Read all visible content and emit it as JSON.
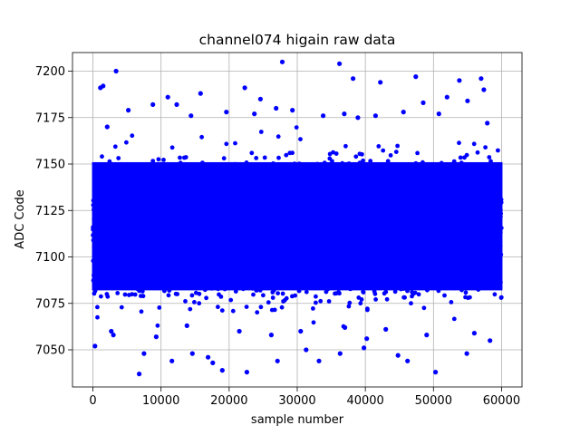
{
  "chart_data": {
    "type": "scatter",
    "title": "channel074 higain raw data",
    "xlabel": "sample number",
    "ylabel": "ADC Code",
    "xlim": [
      -3000,
      63000
    ],
    "ylim": [
      7030,
      7210
    ],
    "xticks": [
      0,
      10000,
      20000,
      30000,
      40000,
      50000,
      60000
    ],
    "xtick_labels": [
      "0",
      "10000",
      "20000",
      "30000",
      "40000",
      "50000",
      "60000"
    ],
    "yticks": [
      7050,
      7075,
      7100,
      7125,
      7150,
      7175,
      7200
    ],
    "ytick_labels": [
      "7050",
      "7075",
      "7100",
      "7125",
      "7150",
      "7175",
      "7200"
    ],
    "grid": true,
    "marker_color": "#0000ff",
    "series": [
      {
        "count": 60000,
        "x_range": [
          0,
          59999
        ],
        "dense_band": [
          7078,
          7155
        ],
        "approx_mean": 7117,
        "points": [
          [
            3400,
            7200
          ],
          [
            1100,
            7191
          ],
          [
            1500,
            7192
          ],
          [
            27800,
            7205
          ],
          [
            36200,
            7204
          ],
          [
            38200,
            7196
          ],
          [
            47400,
            7197
          ],
          [
            57000,
            7196
          ],
          [
            53800,
            7195
          ],
          [
            42200,
            7194
          ],
          [
            22300,
            7191
          ],
          [
            57400,
            7190
          ],
          [
            11000,
            7186
          ],
          [
            8800,
            7182
          ],
          [
            15800,
            7188
          ],
          [
            24600,
            7185
          ],
          [
            52000,
            7186
          ],
          [
            55000,
            7184
          ],
          [
            12300,
            7182
          ],
          [
            48500,
            7183
          ],
          [
            6800,
            7037
          ],
          [
            50300,
            7038
          ],
          [
            22600,
            7038
          ],
          [
            19000,
            7039
          ],
          [
            27100,
            7044
          ],
          [
            33200,
            7044
          ],
          [
            46200,
            7044
          ],
          [
            11600,
            7044
          ],
          [
            17600,
            7043
          ],
          [
            16900,
            7046
          ],
          [
            36300,
            7048
          ],
          [
            54900,
            7048
          ],
          [
            44800,
            7047
          ],
          [
            7500,
            7048
          ],
          [
            14600,
            7048
          ],
          [
            300,
            7052
          ],
          [
            39800,
            7051
          ],
          [
            31300,
            7050
          ],
          [
            58300,
            7055
          ],
          [
            2700,
            7060
          ],
          [
            49000,
            7058
          ],
          [
            26200,
            7058
          ],
          [
            40200,
            7056
          ],
          [
            9300,
            7057
          ],
          [
            43000,
            7061
          ],
          [
            56000,
            7059
          ],
          [
            30500,
            7060
          ],
          [
            13800,
            7063
          ],
          [
            37000,
            7062
          ],
          [
            21500,
            7060
          ],
          [
            3000,
            7058
          ],
          [
            29300,
            7179
          ],
          [
            5200,
            7179
          ],
          [
            33800,
            7176
          ],
          [
            45600,
            7178
          ],
          [
            19600,
            7178
          ],
          [
            41500,
            7176
          ],
          [
            14400,
            7176
          ],
          [
            26900,
            7180
          ],
          [
            50800,
            7177
          ],
          [
            57900,
            7172
          ],
          [
            2100,
            7170
          ],
          [
            36900,
            7177
          ],
          [
            38900,
            7175
          ],
          [
            23700,
            7177
          ]
        ]
      }
    ]
  }
}
